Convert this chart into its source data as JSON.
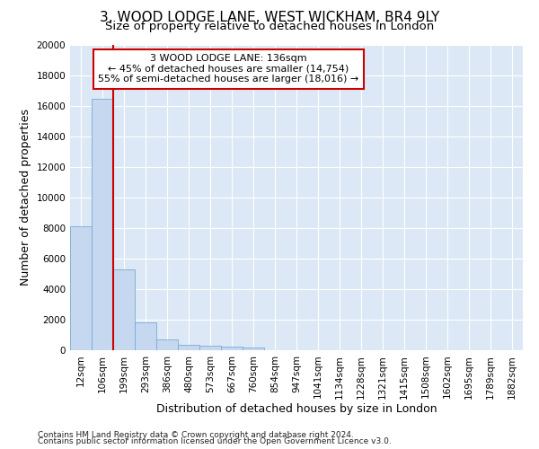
{
  "title": "3, WOOD LODGE LANE, WEST WICKHAM, BR4 9LY",
  "subtitle": "Size of property relative to detached houses in London",
  "xlabel": "Distribution of detached houses by size in London",
  "ylabel": "Number of detached properties",
  "categories": [
    "12sqm",
    "106sqm",
    "199sqm",
    "293sqm",
    "386sqm",
    "480sqm",
    "573sqm",
    "667sqm",
    "760sqm",
    "854sqm",
    "947sqm",
    "1041sqm",
    "1134sqm",
    "1228sqm",
    "1321sqm",
    "1415sqm",
    "1508sqm",
    "1602sqm",
    "1695sqm",
    "1789sqm",
    "1882sqm"
  ],
  "values": [
    8100,
    16500,
    5300,
    1850,
    700,
    380,
    290,
    230,
    190,
    0,
    0,
    0,
    0,
    0,
    0,
    0,
    0,
    0,
    0,
    0,
    0
  ],
  "bar_color": "#c5d8f0",
  "bar_edge_color": "#7aaad4",
  "vline_x": 1.5,
  "vline_color": "#cc0000",
  "annotation_text": "3 WOOD LODGE LANE: 136sqm\n← 45% of detached houses are smaller (14,754)\n55% of semi-detached houses are larger (18,016) →",
  "annotation_box_color": "#ffffff",
  "annotation_box_edge": "#cc0000",
  "ylim": [
    0,
    20000
  ],
  "yticks": [
    0,
    2000,
    4000,
    6000,
    8000,
    10000,
    12000,
    14000,
    16000,
    18000,
    20000
  ],
  "footer_line1": "Contains HM Land Registry data © Crown copyright and database right 2024.",
  "footer_line2": "Contains public sector information licensed under the Open Government Licence v3.0.",
  "fig_bg_color": "#ffffff",
  "plot_bg_color": "#dce8f5",
  "grid_color": "#ffffff",
  "title_fontsize": 11,
  "subtitle_fontsize": 9.5,
  "axis_label_fontsize": 9,
  "tick_fontsize": 7.5,
  "footer_fontsize": 6.5,
  "annotation_fontsize": 8
}
